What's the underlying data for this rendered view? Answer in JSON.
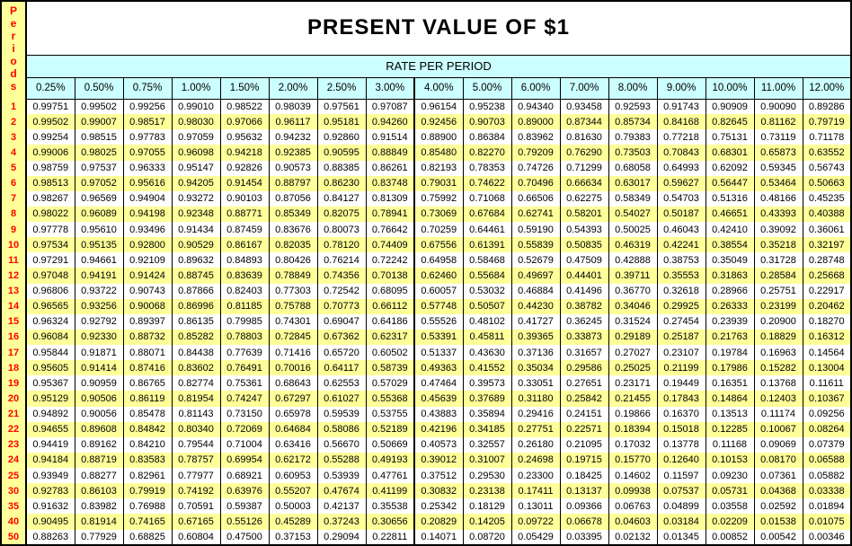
{
  "title": "PRESENT VALUE OF $1",
  "band_label": "RATE PER PERIOD",
  "periods_axis_label": "Periods",
  "colors": {
    "stripe_yellow": "#ffff99",
    "header_cyan": "#ccffff",
    "period_text_red": "#ff0000",
    "border_black": "#000000",
    "background_white": "#ffffff"
  },
  "table": {
    "rates": [
      "0.25%",
      "0.50%",
      "0.75%",
      "1.00%",
      "1.50%",
      "2.00%",
      "2.50%",
      "3.00%",
      "4.00%",
      "5.00%",
      "6.00%",
      "7.00%",
      "8.00%",
      "9.00%",
      "10.00%",
      "11.00%",
      "12.00%"
    ],
    "rows": [
      {
        "period": "1",
        "values": [
          "0.99751",
          "0.99502",
          "0.99256",
          "0.99010",
          "0.98522",
          "0.98039",
          "0.97561",
          "0.97087",
          "0.96154",
          "0.95238",
          "0.94340",
          "0.93458",
          "0.92593",
          "0.91743",
          "0.90909",
          "0.90090",
          "0.89286"
        ]
      },
      {
        "period": "2",
        "values": [
          "0.99502",
          "0.99007",
          "0.98517",
          "0.98030",
          "0.97066",
          "0.96117",
          "0.95181",
          "0.94260",
          "0.92456",
          "0.90703",
          "0.89000",
          "0.87344",
          "0.85734",
          "0.84168",
          "0.82645",
          "0.81162",
          "0.79719"
        ]
      },
      {
        "period": "3",
        "values": [
          "0.99254",
          "0.98515",
          "0.97783",
          "0.97059",
          "0.95632",
          "0.94232",
          "0.92860",
          "0.91514",
          "0.88900",
          "0.86384",
          "0.83962",
          "0.81630",
          "0.79383",
          "0.77218",
          "0.75131",
          "0.73119",
          "0.71178"
        ]
      },
      {
        "period": "4",
        "values": [
          "0.99006",
          "0.98025",
          "0.97055",
          "0.96098",
          "0.94218",
          "0.92385",
          "0.90595",
          "0.88849",
          "0.85480",
          "0.82270",
          "0.79209",
          "0.76290",
          "0.73503",
          "0.70843",
          "0.68301",
          "0.65873",
          "0.63552"
        ]
      },
      {
        "period": "5",
        "values": [
          "0.98759",
          "0.97537",
          "0.96333",
          "0.95147",
          "0.92826",
          "0.90573",
          "0.88385",
          "0.86261",
          "0.82193",
          "0.78353",
          "0.74726",
          "0.71299",
          "0.68058",
          "0.64993",
          "0.62092",
          "0.59345",
          "0.56743"
        ]
      },
      {
        "period": "6",
        "values": [
          "0.98513",
          "0.97052",
          "0.95616",
          "0.94205",
          "0.91454",
          "0.88797",
          "0.86230",
          "0.83748",
          "0.79031",
          "0.74622",
          "0.70496",
          "0.66634",
          "0.63017",
          "0.59627",
          "0.56447",
          "0.53464",
          "0.50663"
        ]
      },
      {
        "period": "7",
        "values": [
          "0.98267",
          "0.96569",
          "0.94904",
          "0.93272",
          "0.90103",
          "0.87056",
          "0.84127",
          "0.81309",
          "0.75992",
          "0.71068",
          "0.66506",
          "0.62275",
          "0.58349",
          "0.54703",
          "0.51316",
          "0.48166",
          "0.45235"
        ]
      },
      {
        "period": "8",
        "values": [
          "0.98022",
          "0.96089",
          "0.94198",
          "0.92348",
          "0.88771",
          "0.85349",
          "0.82075",
          "0.78941",
          "0.73069",
          "0.67684",
          "0.62741",
          "0.58201",
          "0.54027",
          "0.50187",
          "0.46651",
          "0.43393",
          "0.40388"
        ]
      },
      {
        "period": "9",
        "values": [
          "0.97778",
          "0.95610",
          "0.93496",
          "0.91434",
          "0.87459",
          "0.83676",
          "0.80073",
          "0.76642",
          "0.70259",
          "0.64461",
          "0.59190",
          "0.54393",
          "0.50025",
          "0.46043",
          "0.42410",
          "0.39092",
          "0.36061"
        ]
      },
      {
        "period": "10",
        "values": [
          "0.97534",
          "0.95135",
          "0.92800",
          "0.90529",
          "0.86167",
          "0.82035",
          "0.78120",
          "0.74409",
          "0.67556",
          "0.61391",
          "0.55839",
          "0.50835",
          "0.46319",
          "0.42241",
          "0.38554",
          "0.35218",
          "0.32197"
        ]
      },
      {
        "period": "11",
        "values": [
          "0.97291",
          "0.94661",
          "0.92109",
          "0.89632",
          "0.84893",
          "0.80426",
          "0.76214",
          "0.72242",
          "0.64958",
          "0.58468",
          "0.52679",
          "0.47509",
          "0.42888",
          "0.38753",
          "0.35049",
          "0.31728",
          "0.28748"
        ]
      },
      {
        "period": "12",
        "values": [
          "0.97048",
          "0.94191",
          "0.91424",
          "0.88745",
          "0.83639",
          "0.78849",
          "0.74356",
          "0.70138",
          "0.62460",
          "0.55684",
          "0.49697",
          "0.44401",
          "0.39711",
          "0.35553",
          "0.31863",
          "0.28584",
          "0.25668"
        ]
      },
      {
        "period": "13",
        "values": [
          "0.96806",
          "0.93722",
          "0.90743",
          "0.87866",
          "0.82403",
          "0.77303",
          "0.72542",
          "0.68095",
          "0.60057",
          "0.53032",
          "0.46884",
          "0.41496",
          "0.36770",
          "0.32618",
          "0.28966",
          "0.25751",
          "0.22917"
        ]
      },
      {
        "period": "14",
        "values": [
          "0.96565",
          "0.93256",
          "0.90068",
          "0.86996",
          "0.81185",
          "0.75788",
          "0.70773",
          "0.66112",
          "0.57748",
          "0.50507",
          "0.44230",
          "0.38782",
          "0.34046",
          "0.29925",
          "0.26333",
          "0.23199",
          "0.20462"
        ]
      },
      {
        "period": "15",
        "values": [
          "0.96324",
          "0.92792",
          "0.89397",
          "0.86135",
          "0.79985",
          "0.74301",
          "0.69047",
          "0.64186",
          "0.55526",
          "0.48102",
          "0.41727",
          "0.36245",
          "0.31524",
          "0.27454",
          "0.23939",
          "0.20900",
          "0.18270"
        ]
      },
      {
        "period": "16",
        "values": [
          "0.96084",
          "0.92330",
          "0.88732",
          "0.85282",
          "0.78803",
          "0.72845",
          "0.67362",
          "0.62317",
          "0.53391",
          "0.45811",
          "0.39365",
          "0.33873",
          "0.29189",
          "0.25187",
          "0.21763",
          "0.18829",
          "0.16312"
        ]
      },
      {
        "period": "17",
        "values": [
          "0.95844",
          "0.91871",
          "0.88071",
          "0.84438",
          "0.77639",
          "0.71416",
          "0.65720",
          "0.60502",
          "0.51337",
          "0.43630",
          "0.37136",
          "0.31657",
          "0.27027",
          "0.23107",
          "0.19784",
          "0.16963",
          "0.14564"
        ]
      },
      {
        "period": "18",
        "values": [
          "0.95605",
          "0.91414",
          "0.87416",
          "0.83602",
          "0.76491",
          "0.70016",
          "0.64117",
          "0.58739",
          "0.49363",
          "0.41552",
          "0.35034",
          "0.29586",
          "0.25025",
          "0.21199",
          "0.17986",
          "0.15282",
          "0.13004"
        ]
      },
      {
        "period": "19",
        "values": [
          "0.95367",
          "0.90959",
          "0.86765",
          "0.82774",
          "0.75361",
          "0.68643",
          "0.62553",
          "0.57029",
          "0.47464",
          "0.39573",
          "0.33051",
          "0.27651",
          "0.23171",
          "0.19449",
          "0.16351",
          "0.13768",
          "0.11611"
        ]
      },
      {
        "period": "20",
        "values": [
          "0.95129",
          "0.90506",
          "0.86119",
          "0.81954",
          "0.74247",
          "0.67297",
          "0.61027",
          "0.55368",
          "0.45639",
          "0.37689",
          "0.31180",
          "0.25842",
          "0.21455",
          "0.17843",
          "0.14864",
          "0.12403",
          "0.10367"
        ]
      },
      {
        "period": "21",
        "values": [
          "0.94892",
          "0.90056",
          "0.85478",
          "0.81143",
          "0.73150",
          "0.65978",
          "0.59539",
          "0.53755",
          "0.43883",
          "0.35894",
          "0.29416",
          "0.24151",
          "0.19866",
          "0.16370",
          "0.13513",
          "0.11174",
          "0.09256"
        ]
      },
      {
        "period": "22",
        "values": [
          "0.94655",
          "0.89608",
          "0.84842",
          "0.80340",
          "0.72069",
          "0.64684",
          "0.58086",
          "0.52189",
          "0.42196",
          "0.34185",
          "0.27751",
          "0.22571",
          "0.18394",
          "0.15018",
          "0.12285",
          "0.10067",
          "0.08264"
        ]
      },
      {
        "period": "23",
        "values": [
          "0.94419",
          "0.89162",
          "0.84210",
          "0.79544",
          "0.71004",
          "0.63416",
          "0.56670",
          "0.50669",
          "0.40573",
          "0.32557",
          "0.26180",
          "0.21095",
          "0.17032",
          "0.13778",
          "0.11168",
          "0.09069",
          "0.07379"
        ]
      },
      {
        "period": "24",
        "values": [
          "0.94184",
          "0.88719",
          "0.83583",
          "0.78757",
          "0.69954",
          "0.62172",
          "0.55288",
          "0.49193",
          "0.39012",
          "0.31007",
          "0.24698",
          "0.19715",
          "0.15770",
          "0.12640",
          "0.10153",
          "0.08170",
          "0.06588"
        ]
      },
      {
        "period": "25",
        "values": [
          "0.93949",
          "0.88277",
          "0.82961",
          "0.77977",
          "0.68921",
          "0.60953",
          "0.53939",
          "0.47761",
          "0.37512",
          "0.29530",
          "0.23300",
          "0.18425",
          "0.14602",
          "0.11597",
          "0.09230",
          "0.07361",
          "0.05882"
        ]
      },
      {
        "period": "30",
        "values": [
          "0.92783",
          "0.86103",
          "0.79919",
          "0.74192",
          "0.63976",
          "0.55207",
          "0.47674",
          "0.41199",
          "0.30832",
          "0.23138",
          "0.17411",
          "0.13137",
          "0.09938",
          "0.07537",
          "0.05731",
          "0.04368",
          "0.03338"
        ]
      },
      {
        "period": "35",
        "values": [
          "0.91632",
          "0.83982",
          "0.76988",
          "0.70591",
          "0.59387",
          "0.50003",
          "0.42137",
          "0.35538",
          "0.25342",
          "0.18129",
          "0.13011",
          "0.09366",
          "0.06763",
          "0.04899",
          "0.03558",
          "0.02592",
          "0.01894"
        ]
      },
      {
        "period": "40",
        "values": [
          "0.90495",
          "0.81914",
          "0.74165",
          "0.67165",
          "0.55126",
          "0.45289",
          "0.37243",
          "0.30656",
          "0.20829",
          "0.14205",
          "0.09722",
          "0.06678",
          "0.04603",
          "0.03184",
          "0.02209",
          "0.01538",
          "0.01075"
        ]
      },
      {
        "period": "50",
        "values": [
          "0.88263",
          "0.77929",
          "0.68825",
          "0.60804",
          "0.47500",
          "0.37153",
          "0.29094",
          "0.22811",
          "0.14071",
          "0.08720",
          "0.05429",
          "0.03395",
          "0.02132",
          "0.01345",
          "0.00852",
          "0.00542",
          "0.00346"
        ]
      }
    ]
  }
}
